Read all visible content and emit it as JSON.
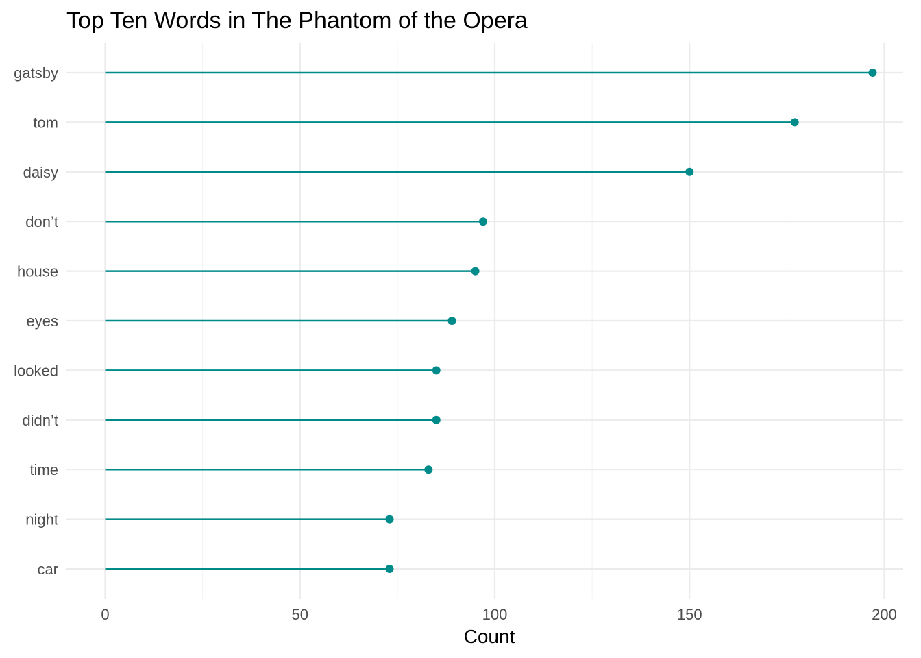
{
  "chart_data": {
    "type": "lollipop",
    "title": "Top Ten Words in The Phantom of the Opera",
    "xlabel": "Count",
    "ylabel": "",
    "xlim": [
      0,
      200
    ],
    "x_ticks": [
      0,
      50,
      100,
      150,
      200
    ],
    "x_tick_labels": [
      "0",
      "50",
      "100",
      "150",
      "200"
    ],
    "grid": true,
    "orientation": "horizontal",
    "color": "#008B8B",
    "categories": [
      "gatsby",
      "tom",
      "daisy",
      "don’t",
      "house",
      "eyes",
      "looked",
      "didn’t",
      "time",
      "night",
      "car"
    ],
    "values": [
      197,
      177,
      150,
      97,
      95,
      89,
      85,
      85,
      83,
      73,
      73
    ]
  }
}
